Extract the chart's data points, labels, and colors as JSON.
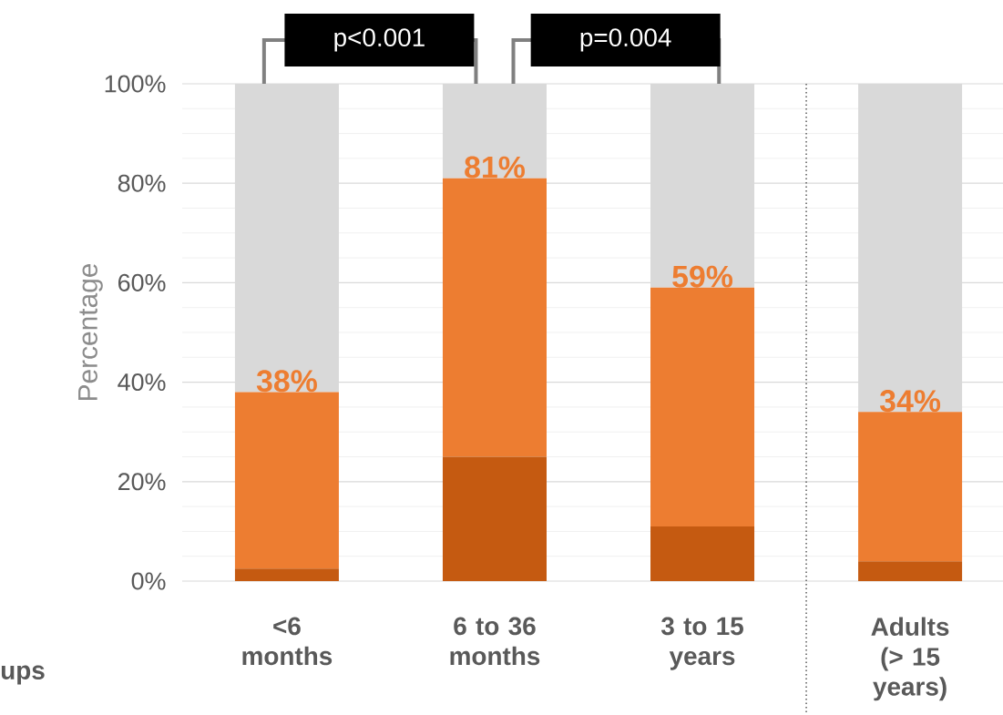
{
  "chart_data": {
    "type": "bar",
    "stacked": true,
    "categories": [
      "<6 months",
      "6 to 36 months",
      "3 to 15 years",
      "Adults (> 15 years)"
    ],
    "series": [
      {
        "color": "#c55a11",
        "values": [
          2.5,
          25,
          11,
          4
        ]
      },
      {
        "color": "#ed7d31",
        "values": [
          35.5,
          56,
          48,
          30
        ]
      },
      {
        "color": "#d9d9d9",
        "values": [
          62,
          19,
          41,
          66
        ]
      }
    ],
    "ylabel": "Percentage",
    "xlabel": "ups",
    "ylim": [
      0,
      100
    ],
    "yticks": [
      {
        "value": 0,
        "label": "0%"
      },
      {
        "value": 20,
        "label": "20%"
      },
      {
        "value": 40,
        "label": "40%"
      },
      {
        "value": 60,
        "label": "60%"
      },
      {
        "value": 80,
        "label": "80%"
      },
      {
        "value": 100,
        "label": "100%"
      }
    ],
    "grid": "y",
    "annotations": [
      "p<0.001",
      "p=0.004",
      {
        "text": "38%",
        "x": "<6 months",
        "y": 38
      },
      {
        "text": "81%",
        "x": "6 to 36 months",
        "y": 81
      },
      {
        "text": "59%",
        "x": "3 to 15 years",
        "y": 59
      },
      {
        "text": "34%",
        "x": "Adults (> 15 years)",
        "y": 34
      }
    ]
  }
}
